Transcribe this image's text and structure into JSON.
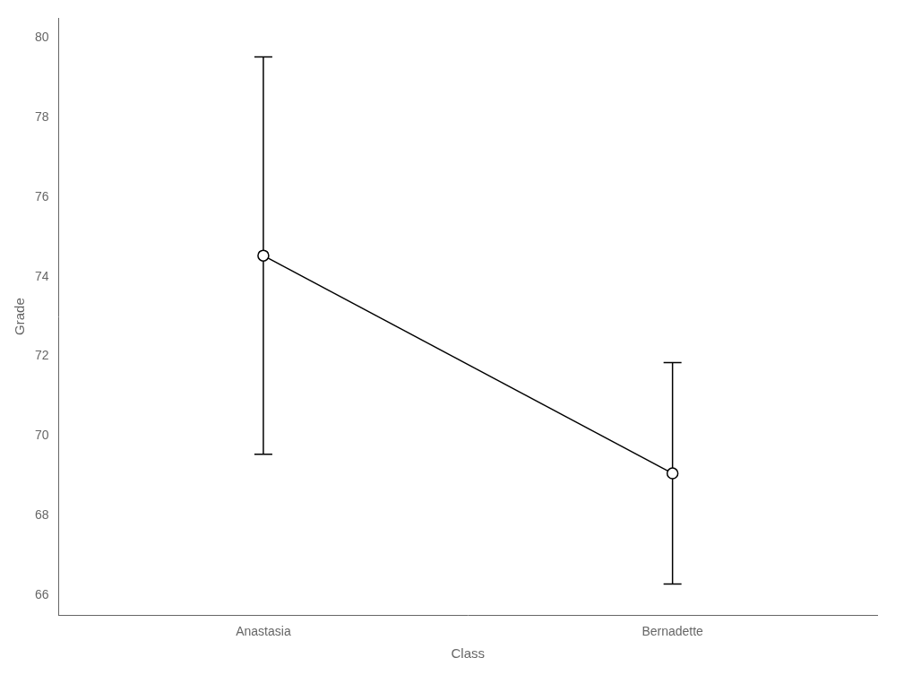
{
  "chart_data": {
    "type": "line",
    "xlabel": "Class",
    "ylabel": "Grade",
    "categories": [
      "Anastasia",
      "Bernadette"
    ],
    "values": [
      74.53,
      69.06
    ],
    "ci_lower": [
      69.54,
      66.28
    ],
    "ci_upper": [
      79.52,
      71.84
    ],
    "ylim": [
      65.5,
      80.5
    ],
    "yticks": [
      66,
      68,
      70,
      72,
      74,
      76,
      78,
      80
    ],
    "grid": false,
    "legend": false,
    "color": "black",
    "marker": "circle"
  }
}
